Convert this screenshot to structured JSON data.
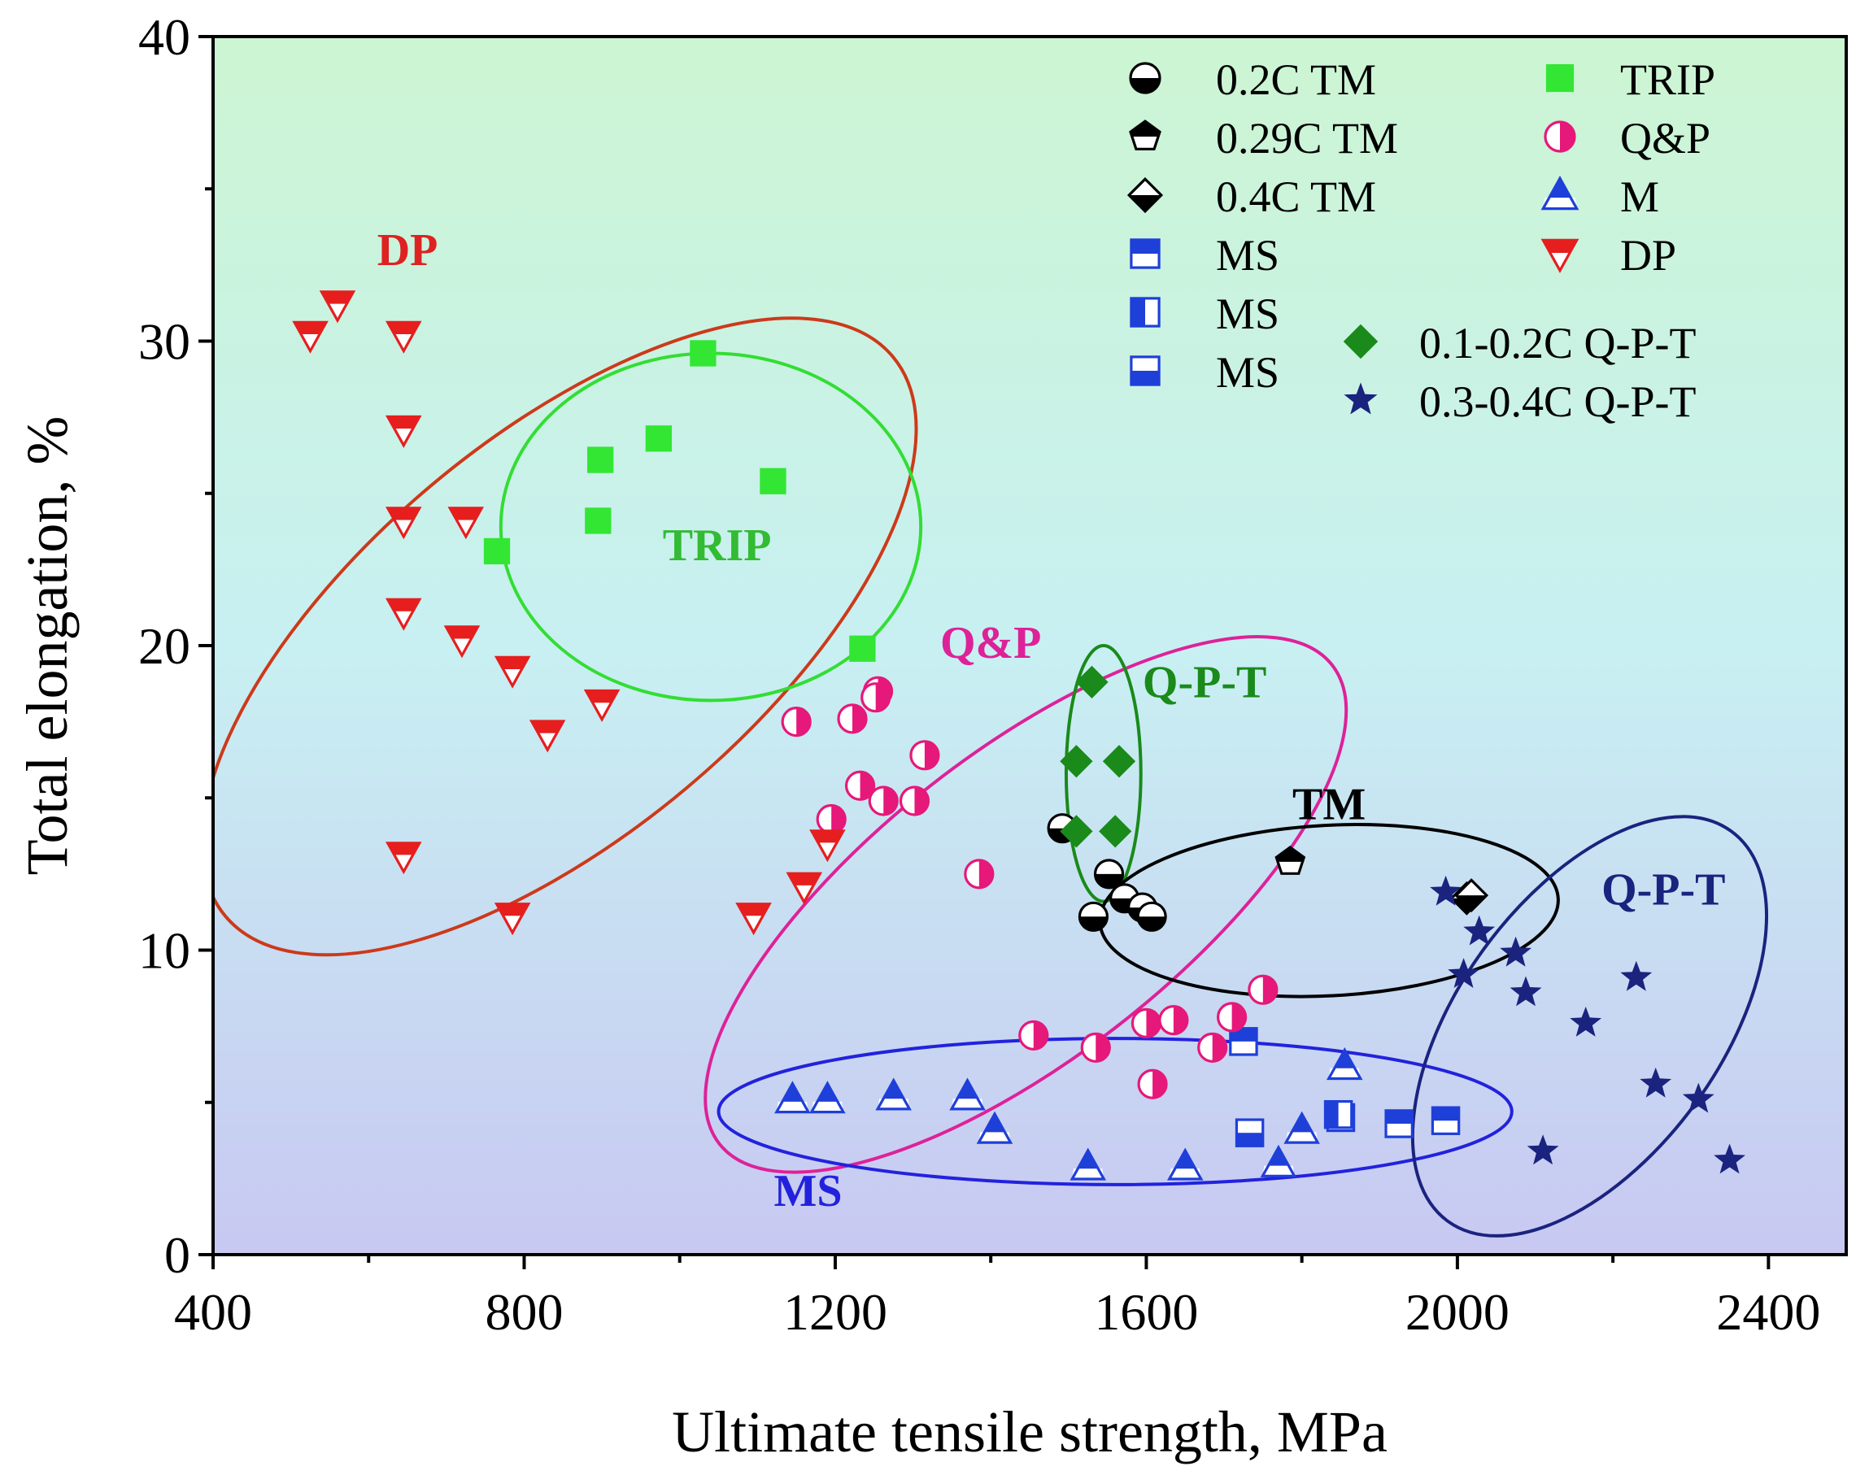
{
  "chart_data": {
    "type": "scatter",
    "xlabel": "Ultimate tensile strength, MPa",
    "ylabel": "Total elongation, %",
    "xlim": [
      400,
      2500
    ],
    "ylim": [
      0,
      40
    ],
    "x_ticks": [
      400,
      800,
      1200,
      1600,
      2000,
      2400
    ],
    "x_tick_labels": [
      "400",
      "800",
      "1200",
      "1600",
      "2000",
      "2400"
    ],
    "y_ticks": [
      0,
      10,
      20,
      30,
      40
    ],
    "y_tick_labels": [
      "0",
      "10",
      "20",
      "30",
      "40"
    ],
    "series": [
      {
        "name": "0.2C TM",
        "marker": "circle-half-bottom",
        "color": "#000000",
        "points": [
          [
            1492,
            14
          ],
          [
            1532,
            11.1
          ],
          [
            1552,
            12.5
          ],
          [
            1572,
            11.7
          ],
          [
            1595,
            11.4
          ],
          [
            1607,
            11.1
          ]
        ]
      },
      {
        "name": "0.29C TM",
        "marker": "pentagon-half-top",
        "color": "#000000",
        "points": [
          [
            1785,
            12.9
          ]
        ]
      },
      {
        "name": "0.4C TM",
        "marker": "diamond-half-bottom",
        "color": "#000000",
        "points": [
          [
            2012,
            11.7
          ],
          [
            2018,
            11.8
          ]
        ]
      },
      {
        "name": "MS",
        "marker": "square-half-top",
        "color": "#1f3fd9",
        "points": [
          [
            1725,
            7
          ],
          [
            1850,
            4.5
          ],
          [
            1925,
            4.3
          ],
          [
            1985,
            4.4
          ]
        ]
      },
      {
        "name": "MS",
        "marker": "square-half-left",
        "color": "#1f3fd9",
        "points": [
          [
            1847,
            4.6
          ]
        ]
      },
      {
        "name": "MS",
        "marker": "square-half-bottom",
        "color": "#1f3fd9",
        "points": [
          [
            1733,
            4
          ]
        ]
      },
      {
        "name": "TRIP",
        "marker": "square",
        "color": "#33e633",
        "points": [
          [
            1030,
            29.6
          ],
          [
            898,
            26.1
          ],
          [
            973,
            26.8
          ],
          [
            1120,
            25.4
          ],
          [
            895,
            24.1
          ],
          [
            765,
            23.1
          ],
          [
            1235,
            19.9
          ]
        ]
      },
      {
        "name": "Q&P",
        "marker": "circle-half-right",
        "color": "#e6187a",
        "points": [
          [
            1150,
            17.5
          ],
          [
            1222,
            17.6
          ],
          [
            1255,
            18.5
          ],
          [
            1252,
            18.3
          ],
          [
            1315,
            16.4
          ],
          [
            1232,
            15.4
          ],
          [
            1262,
            14.9
          ],
          [
            1302,
            14.9
          ],
          [
            1195,
            14.3
          ],
          [
            1385,
            12.5
          ],
          [
            1455,
            7.2
          ],
          [
            1535,
            6.8
          ],
          [
            1600,
            7.6
          ],
          [
            1635,
            7.7
          ],
          [
            1685,
            6.8
          ],
          [
            1710,
            7.8
          ],
          [
            1750,
            8.7
          ],
          [
            1608,
            5.6
          ]
        ]
      },
      {
        "name": "M",
        "marker": "triangle-half-bottom",
        "color": "#1f3fd9",
        "points": [
          [
            1145,
            5.1
          ],
          [
            1190,
            5.1
          ],
          [
            1275,
            5.2
          ],
          [
            1370,
            5.2
          ],
          [
            1405,
            4.1
          ],
          [
            1525,
            2.9
          ],
          [
            1650,
            2.9
          ],
          [
            1770,
            3.0
          ],
          [
            1800,
            4.1
          ],
          [
            1855,
            6.2
          ]
        ]
      },
      {
        "name": "DP",
        "marker": "triangle-down-half-top",
        "color": "#e61e1e",
        "points": [
          [
            525,
            30.2
          ],
          [
            560,
            31.2
          ],
          [
            645,
            30.2
          ],
          [
            645,
            27.1
          ],
          [
            645,
            24.1
          ],
          [
            725,
            24.1
          ],
          [
            645,
            21.1
          ],
          [
            720,
            20.2
          ],
          [
            785,
            19.2
          ],
          [
            830,
            17.1
          ],
          [
            900,
            18.1
          ],
          [
            645,
            13.1
          ],
          [
            785,
            11.1
          ],
          [
            1095,
            11.1
          ],
          [
            1160,
            12.1
          ],
          [
            1190,
            13.5
          ]
        ]
      },
      {
        "name": "0.1-0.2C Q-P-T",
        "marker": "diamond",
        "color": "#1a8a1a",
        "points": [
          [
            1530,
            18.8
          ],
          [
            1510,
            16.2
          ],
          [
            1565,
            16.2
          ],
          [
            1560,
            13.9
          ],
          [
            1510,
            13.9
          ]
        ]
      },
      {
        "name": "0.3-0.4C Q-P-T",
        "marker": "star",
        "color": "#1a237e",
        "points": [
          [
            1985,
            11.9
          ],
          [
            2028,
            10.6
          ],
          [
            2008,
            9.2
          ],
          [
            2075,
            9.9
          ],
          [
            2088,
            8.6
          ],
          [
            2165,
            7.6
          ],
          [
            2230,
            9.1
          ],
          [
            2255,
            5.6
          ],
          [
            2310,
            5.1
          ],
          [
            2110,
            3.4
          ],
          [
            2350,
            3.1
          ]
        ]
      }
    ],
    "ellipses": [
      {
        "name": "DP",
        "color": "#cc3a1a",
        "cx": 845,
        "cy": 20.3,
        "rx": 560,
        "ry": 6.5,
        "angle": -40
      },
      {
        "name": "TRIP",
        "color": "#33dd33",
        "cx": 1040,
        "cy": 23.9,
        "rx": 270,
        "ry": 5.7,
        "angle": 0
      },
      {
        "name": "Q&P",
        "color": "#dd2299",
        "cx": 1445,
        "cy": 11.5,
        "rx": 500,
        "ry": 5.0,
        "angle": -38
      },
      {
        "name": "Q-P-T",
        "color": "#1a8a1a",
        "cx": 1545,
        "cy": 15.8,
        "rx": 48,
        "ry": 4.2,
        "angle": 0
      },
      {
        "name": "TM",
        "color": "#000000",
        "cx": 1835,
        "cy": 11.3,
        "rx": 295,
        "ry": 2.8,
        "angle": -3
      },
      {
        "name": "MS",
        "color": "#2222dd",
        "cx": 1560,
        "cy": 4.7,
        "rx": 510,
        "ry": 2.4,
        "angle": 0
      },
      {
        "name": "Q-P-T",
        "color": "#1a237e",
        "cx": 2170,
        "cy": 7.5,
        "rx": 310,
        "ry": 4.3,
        "angle": -54
      }
    ],
    "region_labels": [
      {
        "text": "DP",
        "color": "#dd2222",
        "x": 650,
        "y": 32.5
      },
      {
        "text": "TRIP",
        "color": "#33bb33",
        "x": 1048,
        "y": 22.8
      },
      {
        "text": "Q&P",
        "color": "#dd2299",
        "x": 1400,
        "y": 19.6
      },
      {
        "text": "Q-P-T",
        "color": "#1a8a1a",
        "x": 1675,
        "y": 18.3
      },
      {
        "text": "TM",
        "color": "#000000",
        "x": 1835,
        "y": 14.3
      },
      {
        "text": "Q-P-T",
        "color": "#1a237e",
        "x": 2265,
        "y": 11.5
      },
      {
        "text": "MS",
        "color": "#2222dd",
        "x": 1165,
        "y": 1.6
      }
    ],
    "legend": {
      "placement": "top-right",
      "entries": [
        {
          "label": "0.2C TM",
          "series": 0
        },
        {
          "label": "0.29C TM",
          "series": 1
        },
        {
          "label": " 0.4C TM",
          "series": 2
        },
        {
          "label": "MS",
          "series": 3
        },
        {
          "label": "MS",
          "series": 4
        },
        {
          "label": "MS",
          "series": 5
        },
        {
          "label": "TRIP",
          "series": 6
        },
        {
          "label": "Q&P",
          "series": 7
        },
        {
          "label": "M",
          "series": 8
        },
        {
          "label": "DP",
          "series": 9
        },
        {
          "label": "0.1-0.2C Q-P-T",
          "series": 10
        },
        {
          "label": "0.3-0.4C Q-P-T",
          "series": 11
        }
      ]
    },
    "background_gradient": {
      "top": "#ccf5d2",
      "middle": "#c8f0f2",
      "bottom": "#c8c8f2"
    }
  }
}
